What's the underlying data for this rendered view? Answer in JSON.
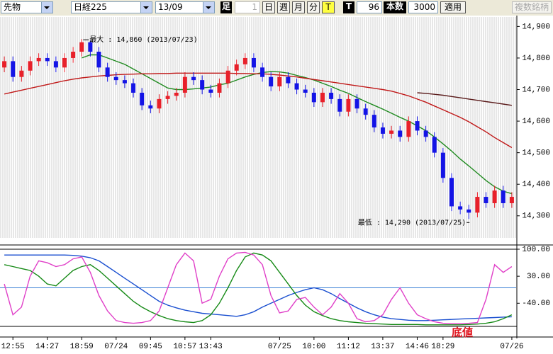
{
  "toolbar": {
    "market": "先物",
    "symbol": "日経225",
    "contract": "13/09",
    "bar_label": "足",
    "bar_size": 1,
    "periods": [
      "日",
      "週",
      "月",
      "分",
      "T"
    ],
    "tick_label": "T",
    "tick_count": 96,
    "count_label": "本数",
    "count": 3000,
    "apply": "適用",
    "multi": "複数銘柄"
  },
  "chart_data": [
    {
      "type": "candlestick",
      "categories": [
        null,
        "12:55",
        null,
        null,
        null,
        "14:27",
        null,
        null,
        null,
        "18:59",
        null,
        null,
        null,
        "07/24",
        null,
        null,
        null,
        "09:45",
        null,
        null,
        null,
        "10:57",
        null,
        null,
        "13:43",
        null,
        null,
        null,
        null,
        null,
        null,
        null,
        "07/25",
        null,
        null,
        null,
        "10:00",
        null,
        null,
        null,
        "11:12",
        null,
        null,
        null,
        "13:37",
        null,
        null,
        null,
        "14:46",
        null,
        null,
        "18:29",
        null,
        null,
        null,
        null,
        null,
        null,
        null,
        "07/26"
      ],
      "open": [
        14770,
        14790,
        14740,
        14760,
        14790,
        14800,
        14790,
        14770,
        14800,
        14820,
        14850,
        14820,
        14770,
        14740,
        14730,
        14720,
        14690,
        14650,
        14640,
        14670,
        14680,
        14690,
        14740,
        14730,
        14700,
        14690,
        14720,
        14760,
        14780,
        14800,
        14770,
        14740,
        14710,
        14740,
        14720,
        14700,
        14690,
        14660,
        14690,
        14670,
        14630,
        14670,
        14640,
        14620,
        14580,
        14560,
        14570,
        14550,
        14600,
        14570,
        14550,
        14500,
        14420,
        14330,
        14320,
        14310,
        14360,
        14340,
        14380,
        14340
      ],
      "high": [
        14805,
        14805,
        14775,
        14805,
        14815,
        14815,
        14805,
        14815,
        14835,
        14860,
        14855,
        14835,
        14785,
        14755,
        14745,
        14735,
        14705,
        14665,
        14685,
        14695,
        14705,
        14755,
        14755,
        14745,
        14715,
        14735,
        14775,
        14795,
        14815,
        14815,
        14785,
        14755,
        14755,
        14755,
        14735,
        14715,
        14705,
        14705,
        14705,
        14685,
        14685,
        14685,
        14655,
        14635,
        14595,
        14585,
        14585,
        14615,
        14615,
        14585,
        14565,
        14515,
        14435,
        14345,
        14335,
        14375,
        14375,
        14395,
        14395,
        14375
      ],
      "low": [
        14755,
        14725,
        14725,
        14745,
        14775,
        14775,
        14755,
        14755,
        14785,
        14805,
        14805,
        14755,
        14725,
        14715,
        14705,
        14675,
        14635,
        14625,
        14625,
        14655,
        14665,
        14675,
        14715,
        14685,
        14675,
        14675,
        14705,
        14745,
        14765,
        14755,
        14725,
        14695,
        14695,
        14705,
        14685,
        14675,
        14645,
        14645,
        14655,
        14615,
        14615,
        14625,
        14605,
        14565,
        14545,
        14545,
        14535,
        14535,
        14555,
        14535,
        14485,
        14405,
        14315,
        14305,
        14290,
        14295,
        14325,
        14325,
        14325,
        14325
      ],
      "close": [
        14790,
        14740,
        14760,
        14790,
        14800,
        14790,
        14770,
        14800,
        14820,
        14850,
        14820,
        14770,
        14740,
        14730,
        14720,
        14690,
        14650,
        14640,
        14670,
        14680,
        14690,
        14740,
        14730,
        14700,
        14690,
        14720,
        14760,
        14780,
        14800,
        14770,
        14740,
        14710,
        14740,
        14720,
        14700,
        14690,
        14660,
        14690,
        14670,
        14630,
        14670,
        14640,
        14620,
        14580,
        14560,
        14570,
        14550,
        14600,
        14570,
        14550,
        14500,
        14420,
        14330,
        14320,
        14310,
        14360,
        14340,
        14380,
        14340,
        14360
      ],
      "up_color": "#e8202a",
      "down_color": "#1414e6",
      "series": [
        {
          "color": "#1f8a1f",
          "values": [
            null,
            null,
            null,
            null,
            null,
            null,
            null,
            null,
            null,
            14800,
            14810,
            14810,
            14800,
            14790,
            14780,
            14765,
            14750,
            14735,
            14720,
            14705,
            14700,
            14700,
            14702,
            14705,
            14708,
            14715,
            14720,
            14730,
            14740,
            14748,
            14754,
            14757,
            14756,
            14752,
            14745,
            14738,
            14730,
            14720,
            14710,
            14698,
            14688,
            14675,
            14662,
            14650,
            14638,
            14625,
            14612,
            14600,
            14585,
            14570,
            14550,
            14528,
            14505,
            14480,
            14458,
            14435,
            14412,
            14392,
            14378,
            14370
          ]
        },
        {
          "color": "#c01818",
          "values": [
            14686,
            14692,
            14698,
            14704,
            14710,
            14716,
            14722,
            14728,
            14733,
            14737,
            14740,
            14743,
            14745,
            14747,
            14748,
            14749,
            14750,
            14750,
            14751,
            14751,
            14752,
            14752,
            14752,
            14752,
            14752,
            14752,
            14752,
            14751,
            14751,
            14750,
            14750,
            14748,
            14746,
            14743,
            14740,
            14736,
            14732,
            14728,
            14724,
            14720,
            14716,
            14712,
            14708,
            14704,
            14700,
            14695,
            14688,
            14680,
            14670,
            14660,
            14648,
            14636,
            14624,
            14612,
            14598,
            14582,
            14566,
            14548,
            14532,
            14516
          ]
        },
        {
          "color": "#5a1a1a",
          "values": [
            null,
            null,
            null,
            null,
            null,
            null,
            null,
            null,
            null,
            null,
            null,
            null,
            null,
            null,
            null,
            null,
            null,
            null,
            null,
            null,
            null,
            null,
            null,
            null,
            null,
            null,
            null,
            null,
            null,
            null,
            null,
            null,
            null,
            null,
            null,
            null,
            null,
            null,
            null,
            null,
            null,
            null,
            null,
            null,
            null,
            null,
            null,
            null,
            14690,
            14688,
            14685,
            14682,
            14678,
            14674,
            14670,
            14666,
            14662,
            14658,
            14654,
            14650
          ]
        }
      ],
      "ylim": [
        14230,
        14930
      ],
      "yticks": [
        {
          "value": 14300,
          "label": "14,300"
        },
        {
          "value": 14400,
          "label": "14,400"
        },
        {
          "value": 14500,
          "label": "14,500"
        },
        {
          "value": 14600,
          "label": "14,600"
        },
        {
          "value": 14700,
          "label": "14,700"
        },
        {
          "value": 14800,
          "label": "14,800"
        },
        {
          "value": 14900,
          "label": "14,900"
        }
      ],
      "annotations": [
        "最大 : 14,860 (2013/07/23)",
        "最低 : 14,290 (2013/07/25)"
      ]
    },
    {
      "type": "line",
      "series": [
        {
          "color": "#1a4fd0",
          "values": [
            85,
            85,
            85,
            85,
            85,
            85,
            85,
            85,
            84,
            82,
            78,
            70,
            55,
            40,
            25,
            10,
            -5,
            -20,
            -35,
            -45,
            -52,
            -58,
            -62,
            -66,
            -68,
            -70,
            -72,
            -74,
            -70,
            -62,
            -50,
            -40,
            -30,
            -20,
            -12,
            -5,
            0,
            -5,
            -15,
            -28,
            -40,
            -52,
            -62,
            -70,
            -76,
            -80,
            -82,
            -84,
            -85,
            -85,
            -84,
            -83,
            -82,
            -81,
            -80,
            -79,
            -78,
            -77,
            -76,
            -75
          ]
        },
        {
          "color": "#168a16",
          "values": [
            60,
            55,
            50,
            45,
            30,
            10,
            5,
            25,
            45,
            55,
            60,
            45,
            25,
            5,
            -15,
            -35,
            -50,
            -62,
            -72,
            -80,
            -85,
            -88,
            -90,
            -85,
            -70,
            -40,
            0,
            45,
            80,
            90,
            85,
            70,
            40,
            10,
            -20,
            -45,
            -62,
            -72,
            -80,
            -85,
            -88,
            -90,
            -92,
            -93,
            -94,
            -95,
            -95,
            -95,
            -95,
            -96,
            -96,
            -96,
            -96,
            -96,
            -95,
            -94,
            -92,
            -88,
            -80,
            -70
          ]
        },
        {
          "color": "#e040c8",
          "values": [
            10,
            -70,
            -50,
            30,
            70,
            65,
            55,
            60,
            75,
            80,
            40,
            -20,
            -60,
            -85,
            -90,
            -92,
            -90,
            -85,
            -60,
            0,
            60,
            90,
            70,
            -40,
            -30,
            30,
            75,
            90,
            92,
            85,
            60,
            -20,
            -65,
            -60,
            -30,
            -25,
            -50,
            -70,
            -50,
            -15,
            -40,
            -80,
            -88,
            -85,
            -70,
            -30,
            0,
            -40,
            -70,
            -80,
            -88,
            -92,
            -93,
            -93,
            -92,
            -90,
            -30,
            60,
            40,
            55
          ]
        }
      ],
      "ylim": [
        -100,
        100
      ],
      "yticks": [
        {
          "value": 100,
          "label": "100.00"
        },
        {
          "value": 30,
          "label": "30.00"
        },
        {
          "value": -40,
          "label": "-40.00"
        }
      ],
      "ref_line": 0,
      "ref_color": "#3a7fd5",
      "annotations": [
        "底値"
      ]
    }
  ]
}
